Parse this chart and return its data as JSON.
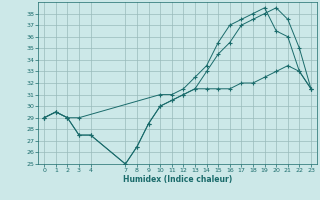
{
  "xlabel": "Humidex (Indice chaleur)",
  "xlim": [
    -0.5,
    23.5
  ],
  "ylim": [
    25,
    39
  ],
  "yticks": [
    25,
    26,
    27,
    28,
    29,
    30,
    31,
    32,
    33,
    34,
    35,
    36,
    37,
    38
  ],
  "xticks": [
    0,
    1,
    2,
    3,
    4,
    7,
    8,
    9,
    10,
    11,
    12,
    13,
    14,
    15,
    16,
    17,
    18,
    19,
    20,
    21,
    22,
    23
  ],
  "bg_color": "#cce8e8",
  "grid_color": "#99bbbb",
  "line_color": "#1a6b6b",
  "line1_x": [
    0,
    1,
    2,
    3,
    10,
    11,
    12,
    13,
    14,
    15,
    16,
    17,
    18,
    19,
    20,
    21,
    22,
    23
  ],
  "line1_y": [
    29,
    29.5,
    29,
    29,
    31,
    31,
    31.5,
    32.5,
    33.5,
    35.5,
    37,
    37.5,
    38,
    38.5,
    36.5,
    36,
    33,
    31.5
  ],
  "line2_x": [
    0,
    1,
    2,
    3,
    4,
    7,
    8,
    9,
    10,
    11,
    12,
    13,
    14,
    15,
    16,
    17,
    18,
    19,
    20,
    21,
    22,
    23
  ],
  "line2_y": [
    29,
    29.5,
    29,
    27.5,
    27.5,
    25,
    26.5,
    28.5,
    30,
    30.5,
    31,
    31.5,
    31.5,
    31.5,
    31.5,
    32,
    32,
    32.5,
    33,
    33.5,
    33,
    31.5
  ],
  "line3_x": [
    0,
    1,
    2,
    3,
    4,
    7,
    8,
    9,
    10,
    11,
    12,
    13,
    14,
    15,
    16,
    17,
    18,
    19,
    20,
    21,
    22,
    23
  ],
  "line3_y": [
    29,
    29.5,
    29,
    27.5,
    27.5,
    25,
    26.5,
    28.5,
    30,
    30.5,
    31,
    31.5,
    33,
    34.5,
    35.5,
    37,
    37.5,
    38,
    38.5,
    37.5,
    35,
    31.5
  ]
}
